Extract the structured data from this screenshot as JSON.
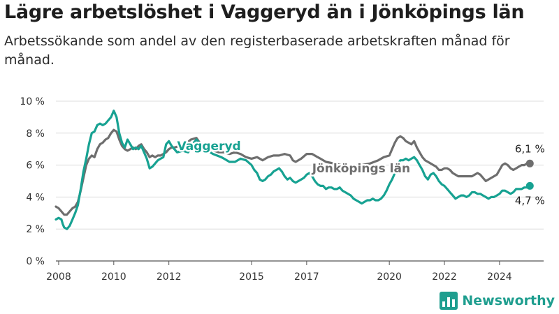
{
  "title": "Lägre arbetslöshet i Vaggeryd än i Jönköpings län",
  "subtitle": "Arbetssökande som andel av den registerbaserade arbetskraften månad för månad.",
  "brand": {
    "name": "Newsworthy"
  },
  "colors": {
    "vaggeryd": "#17a292",
    "lan": "#6e6e6e",
    "grid": "#dcdcdc",
    "axis": "#555555"
  },
  "icons": {
    "brand": "newsworthy-logo-icon"
  },
  "chart_data": {
    "type": "line",
    "title": "Lägre arbetslöshet i Vaggeryd än i Jönköpings län",
    "subtitle": "Arbetssökande som andel av den registerbaserade arbetskraften månad för månad.",
    "xlabel": "",
    "ylabel": "",
    "x_ticks": [
      "2008",
      "2010",
      "2012",
      "2015",
      "2017",
      "2020",
      "2022",
      "2024"
    ],
    "y_ticks": [
      "0 %",
      "2 %",
      "4 %",
      "6 %",
      "8 %",
      "10 %"
    ],
    "xlim": [
      2007.9,
      2025.6
    ],
    "ylim": [
      0,
      10
    ],
    "grid": true,
    "series": [
      {
        "name": "Jönköpings län",
        "end_label": "6,1 %",
        "points": [
          [
            2007.9,
            3.4
          ],
          [
            2008.0,
            3.3
          ],
          [
            2008.1,
            3.1
          ],
          [
            2008.2,
            2.9
          ],
          [
            2008.3,
            2.9
          ],
          [
            2008.4,
            3.1
          ],
          [
            2008.5,
            3.3
          ],
          [
            2008.6,
            3.4
          ],
          [
            2008.7,
            3.7
          ],
          [
            2008.8,
            4.4
          ],
          [
            2008.9,
            5.2
          ],
          [
            2009.0,
            6.0
          ],
          [
            2009.1,
            6.4
          ],
          [
            2009.2,
            6.6
          ],
          [
            2009.3,
            6.5
          ],
          [
            2009.4,
            7.0
          ],
          [
            2009.5,
            7.3
          ],
          [
            2009.6,
            7.4
          ],
          [
            2009.7,
            7.6
          ],
          [
            2009.8,
            7.7
          ],
          [
            2009.9,
            8.0
          ],
          [
            2010.0,
            8.2
          ],
          [
            2010.1,
            8.1
          ],
          [
            2010.2,
            7.6
          ],
          [
            2010.3,
            7.2
          ],
          [
            2010.4,
            7.0
          ],
          [
            2010.5,
            6.9
          ],
          [
            2010.6,
            7.0
          ],
          [
            2010.7,
            7.1
          ],
          [
            2010.8,
            7.0
          ],
          [
            2010.9,
            7.2
          ],
          [
            2011.0,
            7.3
          ],
          [
            2011.1,
            7.0
          ],
          [
            2011.2,
            6.8
          ],
          [
            2011.3,
            6.5
          ],
          [
            2011.4,
            6.6
          ],
          [
            2011.5,
            6.5
          ],
          [
            2011.6,
            6.6
          ],
          [
            2011.7,
            6.6
          ],
          [
            2011.8,
            6.7
          ],
          [
            2011.9,
            6.8
          ],
          [
            2012.0,
            7.0
          ],
          [
            2012.1,
            7.1
          ],
          [
            2012.2,
            7.1
          ],
          [
            2012.4,
            7.2
          ],
          [
            2012.6,
            7.3
          ],
          [
            2012.8,
            7.6
          ],
          [
            2013.0,
            7.7
          ],
          [
            2013.2,
            7.2
          ],
          [
            2013.5,
            7.0
          ],
          [
            2013.8,
            6.8
          ],
          [
            2014.0,
            6.8
          ],
          [
            2014.2,
            6.7
          ],
          [
            2014.4,
            6.8
          ],
          [
            2014.6,
            6.7
          ],
          [
            2014.8,
            6.5
          ],
          [
            2015.0,
            6.4
          ],
          [
            2015.2,
            6.5
          ],
          [
            2015.4,
            6.3
          ],
          [
            2015.6,
            6.5
          ],
          [
            2015.8,
            6.6
          ],
          [
            2016.0,
            6.6
          ],
          [
            2016.2,
            6.7
          ],
          [
            2016.4,
            6.6
          ],
          [
            2016.5,
            6.3
          ],
          [
            2016.6,
            6.2
          ],
          [
            2016.8,
            6.4
          ],
          [
            2017.0,
            6.7
          ],
          [
            2017.2,
            6.7
          ],
          [
            2017.4,
            6.5
          ],
          [
            2017.5,
            6.4
          ],
          [
            2017.7,
            6.2
          ],
          [
            2018.0,
            6.1
          ],
          [
            2018.5,
            5.9
          ],
          [
            2019.0,
            6.0
          ],
          [
            2019.3,
            6.1
          ],
          [
            2019.6,
            6.3
          ],
          [
            2019.8,
            6.5
          ],
          [
            2020.0,
            6.6
          ],
          [
            2020.1,
            7.0
          ],
          [
            2020.2,
            7.4
          ],
          [
            2020.3,
            7.7
          ],
          [
            2020.4,
            7.8
          ],
          [
            2020.5,
            7.7
          ],
          [
            2020.6,
            7.5
          ],
          [
            2020.7,
            7.4
          ],
          [
            2020.8,
            7.3
          ],
          [
            2020.9,
            7.5
          ],
          [
            2021.0,
            7.1
          ],
          [
            2021.1,
            6.8
          ],
          [
            2021.2,
            6.5
          ],
          [
            2021.3,
            6.3
          ],
          [
            2021.4,
            6.2
          ],
          [
            2021.5,
            6.1
          ],
          [
            2021.6,
            6.0
          ],
          [
            2021.7,
            5.9
          ],
          [
            2021.8,
            5.7
          ],
          [
            2021.9,
            5.7
          ],
          [
            2022.0,
            5.8
          ],
          [
            2022.1,
            5.8
          ],
          [
            2022.2,
            5.7
          ],
          [
            2022.3,
            5.5
          ],
          [
            2022.4,
            5.4
          ],
          [
            2022.5,
            5.3
          ],
          [
            2022.7,
            5.3
          ],
          [
            2022.9,
            5.3
          ],
          [
            2023.0,
            5.3
          ],
          [
            2023.1,
            5.4
          ],
          [
            2023.2,
            5.5
          ],
          [
            2023.3,
            5.4
          ],
          [
            2023.4,
            5.2
          ],
          [
            2023.5,
            5.0
          ],
          [
            2023.6,
            5.1
          ],
          [
            2023.7,
            5.2
          ],
          [
            2023.8,
            5.3
          ],
          [
            2023.9,
            5.4
          ],
          [
            2024.0,
            5.7
          ],
          [
            2024.1,
            6.0
          ],
          [
            2024.2,
            6.1
          ],
          [
            2024.3,
            6.0
          ],
          [
            2024.4,
            5.8
          ],
          [
            2024.5,
            5.7
          ],
          [
            2024.6,
            5.8
          ],
          [
            2024.7,
            5.9
          ],
          [
            2024.8,
            6.0
          ],
          [
            2024.9,
            6.0
          ],
          [
            2025.0,
            6.1
          ],
          [
            2025.1,
            6.1
          ]
        ]
      },
      {
        "name": "Vaggeryd",
        "end_label": "4,7 %",
        "points": [
          [
            2007.9,
            2.6
          ],
          [
            2008.0,
            2.7
          ],
          [
            2008.1,
            2.6
          ],
          [
            2008.15,
            2.3
          ],
          [
            2008.2,
            2.1
          ],
          [
            2008.3,
            2.0
          ],
          [
            2008.4,
            2.2
          ],
          [
            2008.5,
            2.6
          ],
          [
            2008.6,
            3.0
          ],
          [
            2008.7,
            3.5
          ],
          [
            2008.8,
            4.5
          ],
          [
            2008.9,
            5.6
          ],
          [
            2009.0,
            6.4
          ],
          [
            2009.1,
            7.3
          ],
          [
            2009.2,
            8.0
          ],
          [
            2009.3,
            8.1
          ],
          [
            2009.4,
            8.5
          ],
          [
            2009.5,
            8.6
          ],
          [
            2009.6,
            8.5
          ],
          [
            2009.7,
            8.6
          ],
          [
            2009.8,
            8.8
          ],
          [
            2009.9,
            9.0
          ],
          [
            2010.0,
            9.4
          ],
          [
            2010.1,
            9.0
          ],
          [
            2010.2,
            8.0
          ],
          [
            2010.3,
            7.4
          ],
          [
            2010.4,
            7.1
          ],
          [
            2010.5,
            7.6
          ],
          [
            2010.6,
            7.3
          ],
          [
            2010.7,
            7.0
          ],
          [
            2010.8,
            7.1
          ],
          [
            2010.9,
            7.0
          ],
          [
            2011.0,
            7.2
          ],
          [
            2011.1,
            6.8
          ],
          [
            2011.2,
            6.4
          ],
          [
            2011.3,
            5.8
          ],
          [
            2011.4,
            5.9
          ],
          [
            2011.5,
            6.1
          ],
          [
            2011.6,
            6.3
          ],
          [
            2011.7,
            6.4
          ],
          [
            2011.8,
            6.5
          ],
          [
            2011.9,
            7.3
          ],
          [
            2012.0,
            7.5
          ],
          [
            2012.1,
            7.2
          ],
          [
            2012.3,
            6.8
          ],
          [
            2012.5,
            6.9
          ],
          [
            2012.7,
            6.8
          ],
          [
            2012.9,
            7.4
          ],
          [
            2013.0,
            7.6
          ],
          [
            2013.3,
            7.0
          ],
          [
            2013.6,
            6.7
          ],
          [
            2013.9,
            6.5
          ],
          [
            2014.0,
            6.4
          ],
          [
            2014.2,
            6.2
          ],
          [
            2014.4,
            6.2
          ],
          [
            2014.6,
            6.4
          ],
          [
            2014.8,
            6.3
          ],
          [
            2015.0,
            6.0
          ],
          [
            2015.1,
            5.7
          ],
          [
            2015.2,
            5.5
          ],
          [
            2015.3,
            5.1
          ],
          [
            2015.4,
            5.0
          ],
          [
            2015.5,
            5.1
          ],
          [
            2015.6,
            5.3
          ],
          [
            2015.7,
            5.4
          ],
          [
            2015.8,
            5.6
          ],
          [
            2015.9,
            5.7
          ],
          [
            2016.0,
            5.8
          ],
          [
            2016.1,
            5.6
          ],
          [
            2016.2,
            5.3
          ],
          [
            2016.3,
            5.1
          ],
          [
            2016.4,
            5.2
          ],
          [
            2016.5,
            5.0
          ],
          [
            2016.6,
            4.9
          ],
          [
            2016.7,
            5.0
          ],
          [
            2016.8,
            5.1
          ],
          [
            2016.9,
            5.2
          ],
          [
            2017.0,
            5.4
          ],
          [
            2017.1,
            5.5
          ],
          [
            2017.2,
            5.3
          ],
          [
            2017.3,
            5.0
          ],
          [
            2017.4,
            4.8
          ],
          [
            2017.5,
            4.7
          ],
          [
            2017.6,
            4.7
          ],
          [
            2017.7,
            4.5
          ],
          [
            2017.8,
            4.6
          ],
          [
            2017.9,
            4.6
          ],
          [
            2018.0,
            4.5
          ],
          [
            2018.1,
            4.5
          ],
          [
            2018.2,
            4.6
          ],
          [
            2018.3,
            4.4
          ],
          [
            2018.4,
            4.3
          ],
          [
            2018.5,
            4.2
          ],
          [
            2018.6,
            4.1
          ],
          [
            2018.7,
            3.9
          ],
          [
            2018.8,
            3.8
          ],
          [
            2018.9,
            3.7
          ],
          [
            2019.0,
            3.6
          ],
          [
            2019.1,
            3.7
          ],
          [
            2019.2,
            3.8
          ],
          [
            2019.3,
            3.8
          ],
          [
            2019.4,
            3.9
          ],
          [
            2019.5,
            3.8
          ],
          [
            2019.6,
            3.8
          ],
          [
            2019.7,
            3.9
          ],
          [
            2019.8,
            4.1
          ],
          [
            2019.9,
            4.4
          ],
          [
            2020.0,
            4.8
          ],
          [
            2020.1,
            5.1
          ],
          [
            2020.2,
            5.5
          ],
          [
            2020.3,
            6.0
          ],
          [
            2020.4,
            6.3
          ],
          [
            2020.5,
            6.3
          ],
          [
            2020.6,
            6.4
          ],
          [
            2020.7,
            6.3
          ],
          [
            2020.8,
            6.4
          ],
          [
            2020.9,
            6.5
          ],
          [
            2021.0,
            6.3
          ],
          [
            2021.1,
            6.0
          ],
          [
            2021.2,
            5.7
          ],
          [
            2021.3,
            5.3
          ],
          [
            2021.4,
            5.1
          ],
          [
            2021.5,
            5.4
          ],
          [
            2021.6,
            5.5
          ],
          [
            2021.7,
            5.3
          ],
          [
            2021.8,
            5.0
          ],
          [
            2021.9,
            4.8
          ],
          [
            2022.0,
            4.7
          ],
          [
            2022.1,
            4.5
          ],
          [
            2022.2,
            4.3
          ],
          [
            2022.3,
            4.1
          ],
          [
            2022.4,
            3.9
          ],
          [
            2022.5,
            4.0
          ],
          [
            2022.6,
            4.1
          ],
          [
            2022.7,
            4.1
          ],
          [
            2022.8,
            4.0
          ],
          [
            2022.9,
            4.1
          ],
          [
            2023.0,
            4.3
          ],
          [
            2023.1,
            4.3
          ],
          [
            2023.2,
            4.2
          ],
          [
            2023.3,
            4.2
          ],
          [
            2023.4,
            4.1
          ],
          [
            2023.5,
            4.0
          ],
          [
            2023.6,
            3.9
          ],
          [
            2023.7,
            4.0
          ],
          [
            2023.8,
            4.0
          ],
          [
            2023.9,
            4.1
          ],
          [
            2024.0,
            4.2
          ],
          [
            2024.1,
            4.4
          ],
          [
            2024.2,
            4.4
          ],
          [
            2024.3,
            4.3
          ],
          [
            2024.4,
            4.2
          ],
          [
            2024.5,
            4.3
          ],
          [
            2024.6,
            4.5
          ],
          [
            2024.7,
            4.5
          ],
          [
            2024.8,
            4.5
          ],
          [
            2024.9,
            4.6
          ],
          [
            2025.0,
            4.6
          ],
          [
            2025.1,
            4.7
          ]
        ]
      }
    ]
  }
}
